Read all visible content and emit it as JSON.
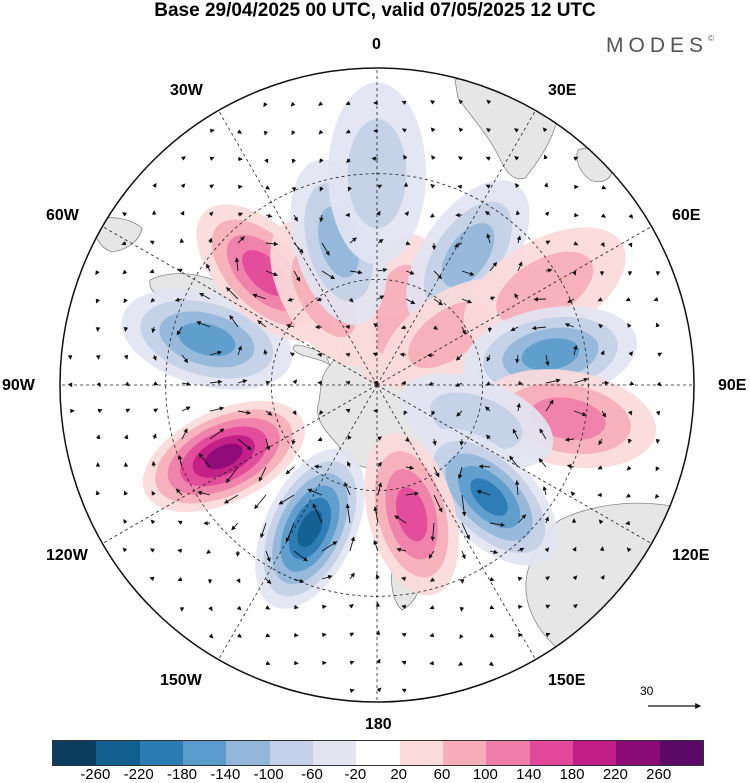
{
  "title": "Base 29/04/2025 00 UTC, valid 07/05/2025 12 UTC",
  "brand": "MODES",
  "brand_mark": "©",
  "longitude_labels": [
    "0",
    "30E",
    "60E",
    "90E",
    "120E",
    "150E",
    "180",
    "150W",
    "120W",
    "90W",
    "60W",
    "30W"
  ],
  "reference_vector": {
    "label": "30"
  },
  "colorbar": {
    "ticks": [
      "-260",
      "-220",
      "-180",
      "-140",
      "-100",
      "-60",
      "-20",
      "20",
      "60",
      "100",
      "140",
      "180",
      "220",
      "260"
    ],
    "colors": [
      "#0d3d5e",
      "#115f8f",
      "#2b7bb5",
      "#5a9bcb",
      "#93b7da",
      "#c3d0e7",
      "#e2e4f2",
      "#ffffff",
      "#fbdada",
      "#f6aeb9",
      "#ef7faa",
      "#e3489a",
      "#c01d86",
      "#8b0a75",
      "#5a0a66"
    ]
  },
  "colors": {
    "land": "#e6e6e6",
    "coast": "#888888",
    "grid": "#222222"
  },
  "anomaly_centers": [
    {
      "lon": 15,
      "colat": 22,
      "value": 80
    },
    {
      "lon": 35,
      "colat": 45,
      "value": -120
    },
    {
      "lon": 55,
      "colat": 25,
      "value": 60
    },
    {
      "lon": 60,
      "colat": 55,
      "value": 90
    },
    {
      "lon": 80,
      "colat": 50,
      "value": -140
    },
    {
      "lon": 100,
      "colat": 55,
      "value": 130
    },
    {
      "lon": 110,
      "colat": 30,
      "value": -60
    },
    {
      "lon": 135,
      "colat": 45,
      "value": -200
    },
    {
      "lon": 165,
      "colat": 38,
      "value": 170
    },
    {
      "lon": -155,
      "colat": 45,
      "value": -240
    },
    {
      "lon": -115,
      "colat": 48,
      "value": 220
    },
    {
      "lon": -75,
      "colat": 50,
      "value": -140
    },
    {
      "lon": -45,
      "colat": 45,
      "value": 160
    },
    {
      "lon": -30,
      "colat": 30,
      "value": 80
    },
    {
      "lon": -15,
      "colat": 42,
      "value": -100
    },
    {
      "lon": 0,
      "colat": 60,
      "value": -60
    }
  ]
}
